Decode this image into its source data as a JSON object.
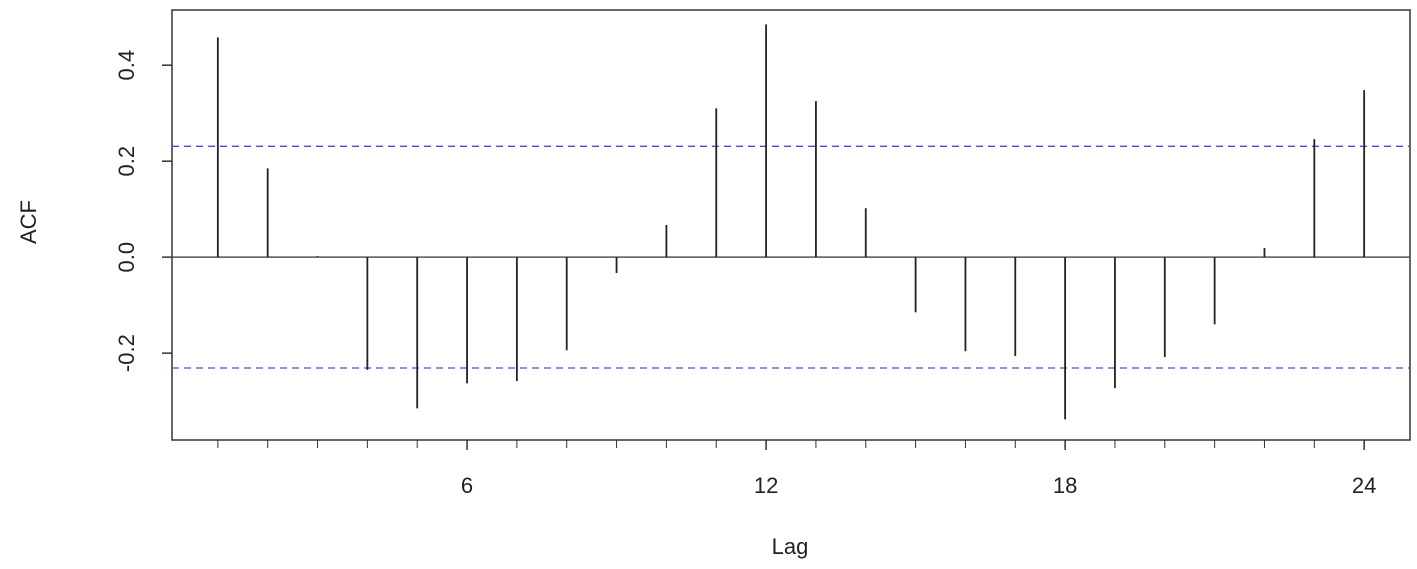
{
  "chart_data": {
    "type": "acf",
    "xlabel": "Lag",
    "ylabel": "ACF",
    "x": [
      1,
      2,
      3,
      4,
      5,
      6,
      7,
      8,
      9,
      10,
      11,
      12,
      13,
      14,
      15,
      16,
      17,
      18,
      19,
      20,
      21,
      22,
      23,
      24
    ],
    "values": [
      0.458,
      0.185,
      0.002,
      -0.235,
      -0.315,
      -0.263,
      -0.258,
      -0.194,
      -0.033,
      0.067,
      0.31,
      0.485,
      0.325,
      0.102,
      -0.115,
      -0.196,
      -0.206,
      -0.338,
      -0.273,
      -0.208,
      -0.14,
      0.019,
      0.246,
      0.348
    ],
    "color": "#222222",
    "bands": [
      0.231,
      -0.231
    ],
    "band_color": "#4a4ae0",
    "xlim": [
      0.08,
      24.92
    ],
    "ylim": [
      -0.381,
      0.515
    ],
    "xticks": [
      6,
      12,
      18,
      24
    ],
    "yticks": [
      -0.2,
      {
        "value": 0,
        "label": "0.0"
      },
      0.2,
      0.4
    ]
  }
}
